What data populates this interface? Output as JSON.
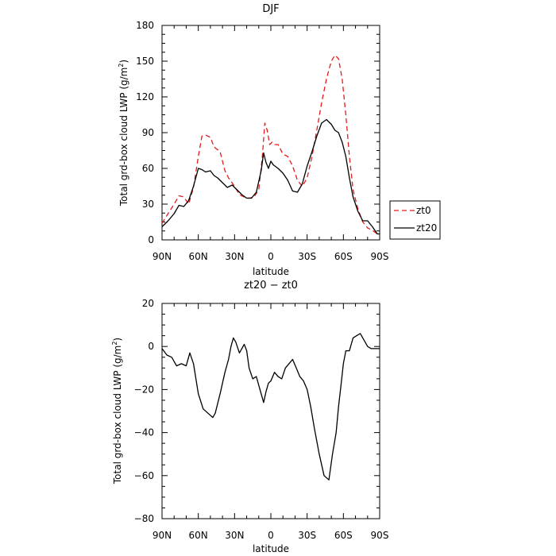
{
  "chart_data": [
    {
      "type": "line",
      "title": "DJF",
      "xlabel": "latitude",
      "ylabel": "Total grd-box cloud LWP (g/m",
      "ylabel_sup": "2",
      "ylabel_close": ")",
      "xlim": [
        90,
        -90
      ],
      "ylim": [
        0,
        180
      ],
      "xticks": [
        {
          "value": 90,
          "label": "90N"
        },
        {
          "value": 60,
          "label": "60N"
        },
        {
          "value": 30,
          "label": "30N"
        },
        {
          "value": 0,
          "label": "0"
        },
        {
          "value": -30,
          "label": "30S"
        },
        {
          "value": -60,
          "label": "60S"
        },
        {
          "value": -90,
          "label": "90S"
        }
      ],
      "yticks": [
        0,
        30,
        60,
        90,
        120,
        150,
        180
      ],
      "legend_position": "right",
      "series": [
        {
          "name": "zt0",
          "color": "#e41a1c",
          "dash": "6,4",
          "x": [
            90,
            85,
            80,
            76,
            72,
            68,
            64,
            60,
            57,
            54,
            50,
            47,
            42,
            38,
            35,
            30,
            26,
            22,
            18,
            14,
            10,
            7,
            5,
            3,
            1,
            -1,
            -3,
            -6,
            -10,
            -14,
            -18,
            -22,
            -26,
            -30,
            -34,
            -38,
            -42,
            -46,
            -50,
            -53,
            -56,
            -59,
            -62,
            -65,
            -68,
            -72,
            -76,
            -80,
            -84,
            -88,
            -90
          ],
          "y": [
            14,
            22,
            30,
            37,
            36,
            30,
            44,
            70,
            87,
            88,
            86,
            78,
            74,
            58,
            52,
            45,
            38,
            36,
            35,
            36,
            42,
            70,
            98,
            92,
            80,
            82,
            80,
            80,
            72,
            70,
            62,
            50,
            45,
            52,
            70,
            92,
            115,
            135,
            150,
            155,
            152,
            135,
            105,
            70,
            42,
            26,
            15,
            10,
            8,
            5,
            5
          ]
        },
        {
          "name": "zt20",
          "color": "#000000",
          "dash": "",
          "x": [
            90,
            85,
            80,
            76,
            72,
            68,
            64,
            60,
            57,
            54,
            50,
            47,
            44,
            40,
            36,
            32,
            28,
            24,
            20,
            16,
            12,
            8,
            6,
            4,
            2,
            0,
            -2,
            -6,
            -10,
            -14,
            -18,
            -22,
            -26,
            -30,
            -34,
            -38,
            -42,
            -46,
            -50,
            -53,
            -56,
            -59,
            -62,
            -65,
            -68,
            -72,
            -76,
            -80,
            -84,
            -88,
            -90
          ],
          "y": [
            11,
            16,
            22,
            29,
            28,
            33,
            45,
            60,
            59,
            57,
            58,
            54,
            52,
            48,
            44,
            46,
            42,
            38,
            35,
            35,
            40,
            58,
            73,
            65,
            60,
            66,
            63,
            60,
            56,
            50,
            41,
            40,
            47,
            62,
            74,
            87,
            98,
            101,
            97,
            92,
            90,
            82,
            70,
            52,
            36,
            24,
            16,
            16,
            11,
            5,
            5
          ]
        }
      ]
    },
    {
      "type": "line",
      "title": "zt20 − zt0",
      "xlabel": "latitude",
      "ylabel": "Total grd-box cloud LWP (g/m",
      "ylabel_sup": "2",
      "ylabel_close": ")",
      "xlim": [
        90,
        -90
      ],
      "ylim": [
        -80,
        20
      ],
      "xticks": [
        {
          "value": 90,
          "label": "90N"
        },
        {
          "value": 60,
          "label": "60N"
        },
        {
          "value": 30,
          "label": "30N"
        },
        {
          "value": 0,
          "label": "0"
        },
        {
          "value": -30,
          "label": "30S"
        },
        {
          "value": -60,
          "label": "60S"
        },
        {
          "value": -90,
          "label": "90S"
        }
      ],
      "yticks": [
        -80,
        -60,
        -40,
        -20,
        0,
        20
      ],
      "series": [
        {
          "name": "",
          "color": "#000000",
          "dash": "",
          "x": [
            90,
            86,
            82,
            78,
            74,
            70,
            67,
            64,
            60,
            56,
            52,
            48,
            46,
            42,
            38,
            35,
            33,
            31,
            29,
            26,
            24,
            22,
            20,
            18,
            15,
            12,
            9,
            6,
            4,
            2,
            0,
            -3,
            -6,
            -9,
            -12,
            -15,
            -18,
            -21,
            -24,
            -27,
            -30,
            -33,
            -36,
            -40,
            -44,
            -48,
            -51,
            -54,
            -56,
            -58,
            -60,
            -62,
            -65,
            -68,
            -71,
            -74,
            -77,
            -80,
            -83,
            -86,
            -88,
            -90
          ],
          "y": [
            -1,
            -4,
            -5,
            -9,
            -8,
            -9,
            -3,
            -8,
            -22,
            -29,
            -31,
            -33,
            -31,
            -22,
            -12,
            -6,
            0,
            4,
            2,
            -3,
            -1,
            1,
            -2,
            -10,
            -15,
            -14,
            -20,
            -26,
            -21,
            -17,
            -16,
            -12,
            -14,
            -15,
            -10,
            -8,
            -6,
            -10,
            -14,
            -16,
            -20,
            -28,
            -38,
            -50,
            -60,
            -62,
            -50,
            -40,
            -28,
            -18,
            -8,
            -2,
            -2,
            4,
            5,
            6,
            3,
            0,
            -1,
            -1,
            -1,
            -1
          ]
        }
      ]
    }
  ]
}
